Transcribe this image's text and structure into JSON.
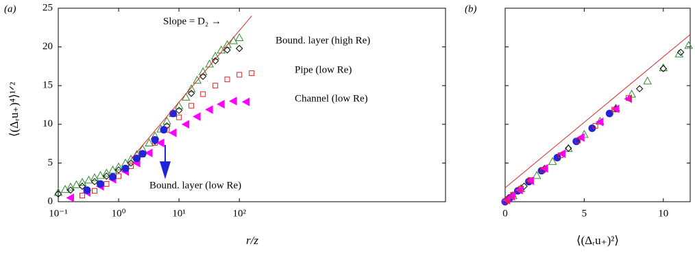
{
  "chart_data": [
    {
      "type": "scatter",
      "panel_label": "(a)",
      "x_label": "r/z",
      "y_label": "⟨(Δᵣu₊)⁴⟩¹ᐟ²",
      "xscale": "log",
      "xlim": [
        0.1,
        260000
      ],
      "ylim": [
        0,
        25
      ],
      "xticks": [
        {
          "value": 0.1,
          "label": "10⁻¹"
        },
        {
          "value": 1,
          "label": "10⁰"
        },
        {
          "value": 10,
          "label": "10¹"
        },
        {
          "value": 100,
          "label": "10²"
        }
      ],
      "yticks": [
        0,
        5,
        10,
        15,
        20,
        25
      ],
      "annotations": [
        "Slope = D₂ →",
        "Bound. layer (high Re)",
        "Pipe (low Re)",
        "Channel (low Re)",
        "Bound. layer (low Re)"
      ],
      "series": [
        {
          "marker": "triangle",
          "filled": false,
          "color": "#2e8b2e",
          "x": [
            0.1,
            0.13,
            0.16,
            0.2,
            0.25,
            0.32,
            0.4,
            0.5,
            0.63,
            0.8,
            1,
            1.3,
            1.6,
            2,
            2.5,
            3.2,
            4,
            5,
            6.3,
            8,
            10,
            13,
            16,
            20,
            25,
            32,
            40,
            50,
            63,
            80,
            100
          ],
          "values": [
            1.2,
            1.6,
            1.9,
            2.2,
            2.5,
            2.8,
            3.1,
            3.4,
            3.7,
            4.1,
            4.5,
            5.0,
            5.5,
            6.1,
            6.8,
            7.6,
            8.5,
            9.4,
            10.4,
            11.4,
            12.4,
            13.5,
            14.6,
            15.7,
            16.8,
            17.8,
            18.8,
            19.6,
            20.3,
            20.8,
            21.2
          ]
        },
        {
          "marker": "diamond",
          "filled": false,
          "color": "#000000",
          "x": [
            0.1,
            0.16,
            0.25,
            0.4,
            0.63,
            1,
            1.6,
            2.5,
            4,
            6.3,
            10,
            16,
            25,
            40,
            63,
            100
          ],
          "values": [
            1.0,
            1.5,
            2.0,
            2.6,
            3.3,
            4.1,
            5.0,
            6.2,
            7.8,
            9.8,
            11.8,
            14.0,
            16.2,
            18.2,
            19.6,
            19.8
          ]
        },
        {
          "marker": "square",
          "filled": false,
          "color": "#e02020",
          "x": [
            0.25,
            0.4,
            0.63,
            1,
            1.6,
            2.5,
            4,
            6.3,
            10,
            16,
            25,
            40,
            63,
            100,
            160
          ],
          "values": [
            0.8,
            1.4,
            2.3,
            3.3,
            4.6,
            6.1,
            7.6,
            9.3,
            10.9,
            12.4,
            13.9,
            15.0,
            15.8,
            16.4,
            16.6
          ]
        },
        {
          "marker": "triangle-left",
          "filled": true,
          "color": "#ff00ff",
          "x": [
            0.16,
            0.3,
            0.5,
            0.8,
            1.3,
            2,
            3.2,
            5,
            8,
            13,
            20,
            32,
            50,
            80,
            130
          ],
          "values": [
            0.5,
            1.2,
            2.0,
            2.9,
            3.9,
            5.0,
            6.3,
            7.6,
            8.9,
            10.0,
            11.0,
            11.9,
            12.6,
            13.0,
            12.9
          ]
        },
        {
          "marker": "circle",
          "filled": true,
          "color": "#2323d8",
          "x": [
            0.3,
            0.5,
            0.8,
            1.3,
            2,
            2.5,
            4,
            5.6,
            8
          ],
          "values": [
            1.5,
            2.3,
            3.2,
            4.3,
            5.6,
            6.2,
            8.0,
            9.3,
            11.4
          ]
        },
        {
          "marker": "line",
          "color": "#e02020",
          "x": [
            1.6,
            160
          ],
          "values": [
            5.5,
            24.0
          ]
        }
      ]
    },
    {
      "type": "scatter",
      "panel_label": "(b)",
      "x_label": "⟨(Δᵣu₊)²⟩",
      "xscale": "linear",
      "xlim": [
        0,
        11.7
      ],
      "ylim": [
        0,
        25
      ],
      "xticks": [
        0,
        5,
        10
      ],
      "yticks": [
        0,
        5,
        10,
        15,
        20,
        25
      ],
      "series": [
        {
          "marker": "line",
          "color": "#e02020",
          "x": [
            0,
            11.7
          ],
          "values": [
            1.8,
            21.6
          ]
        },
        {
          "marker": "triangle",
          "filled": false,
          "color": "#2e8b2e",
          "x": [
            0.5,
            1,
            2,
            3,
            4,
            5,
            6,
            7,
            8,
            9,
            10,
            11,
            11.6
          ],
          "values": [
            0.8,
            1.7,
            3.4,
            5.2,
            6.9,
            8.7,
            10.4,
            12.1,
            13.9,
            15.6,
            17.3,
            19.1,
            20.2
          ]
        },
        {
          "marker": "diamond",
          "filled": false,
          "color": "#000000",
          "x": [
            0.4,
            1.2,
            2.5,
            4,
            5.5,
            7,
            8.5,
            10,
            11.1
          ],
          "values": [
            0.7,
            2.0,
            4.3,
            6.9,
            9.5,
            12.0,
            14.6,
            17.2,
            19.3
          ]
        },
        {
          "marker": "circle",
          "filled": true,
          "color": "#2323d8",
          "x": [
            0,
            0.3,
            0.8,
            1.5,
            2.3,
            3.3,
            4.5,
            5.5,
            6.6
          ],
          "values": [
            0,
            0.5,
            1.4,
            2.6,
            4.0,
            5.7,
            7.8,
            9.5,
            11.4
          ]
        },
        {
          "marker": "triangle-left",
          "filled": true,
          "color": "#ff00ff",
          "x": [
            0.1,
            0.4,
            0.9,
            1.6,
            2.5,
            3.6,
            4.8,
            6,
            7,
            7.8
          ],
          "values": [
            0.2,
            0.7,
            1.5,
            2.7,
            4.3,
            6.2,
            8.3,
            10.3,
            12.0,
            13.3
          ]
        },
        {
          "marker": "square",
          "filled": false,
          "color": "#e02020",
          "x": [
            0,
            0.2,
            0.5,
            1,
            1.6,
            2.4,
            3.5,
            4.6,
            5.7,
            6.9,
            7.8
          ],
          "values": [
            0.05,
            0.35,
            0.9,
            1.7,
            2.8,
            4.1,
            6.0,
            7.9,
            9.8,
            11.9,
            13.4
          ]
        }
      ]
    }
  ]
}
